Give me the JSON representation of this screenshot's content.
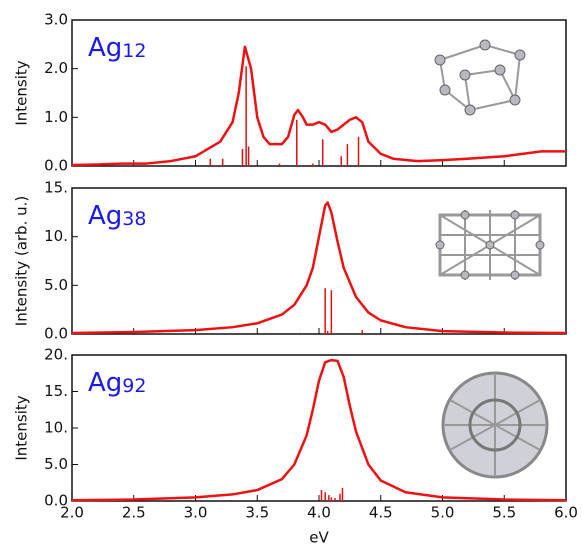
{
  "chart_data": [
    {
      "type": "line",
      "annotation": {
        "text": "Ag",
        "subscript": "12"
      },
      "ylabel": "Intensity",
      "xlim": [
        2.0,
        6.0
      ],
      "xticks": [
        2.0,
        2.5,
        3.0,
        3.5,
        4.0,
        4.5,
        5.0,
        5.5,
        6.0
      ],
      "ylim": [
        0,
        3.0
      ],
      "yticks": [
        {
          "value": 0,
          "label": "0.0"
        },
        {
          "value": 1,
          "label": "1.0"
        },
        {
          "value": 2,
          "label": "2.0"
        },
        {
          "value": 3,
          "label": "3.0"
        }
      ],
      "x": [
        2.0,
        2.2,
        2.4,
        2.6,
        2.8,
        2.9,
        3.0,
        3.1,
        3.2,
        3.3,
        3.35,
        3.4,
        3.45,
        3.5,
        3.55,
        3.6,
        3.7,
        3.75,
        3.8,
        3.83,
        3.87,
        3.9,
        3.95,
        4.0,
        4.05,
        4.1,
        4.15,
        4.2,
        4.25,
        4.3,
        4.35,
        4.4,
        4.5,
        4.6,
        4.8,
        5.0,
        5.2,
        5.5,
        5.8,
        6.0
      ],
      "values": [
        0.02,
        0.03,
        0.05,
        0.05,
        0.1,
        0.15,
        0.2,
        0.35,
        0.5,
        0.9,
        1.5,
        2.45,
        2.0,
        1.0,
        0.6,
        0.45,
        0.45,
        0.6,
        1.05,
        1.15,
        1.0,
        0.85,
        0.85,
        0.9,
        0.85,
        0.7,
        0.75,
        0.85,
        0.95,
        1.0,
        0.9,
        0.5,
        0.25,
        0.15,
        0.1,
        0.12,
        0.15,
        0.2,
        0.3,
        0.3
      ],
      "color": "#ee1111",
      "sticks": {
        "x": [
          3.12,
          3.22,
          3.38,
          3.41,
          3.43,
          3.68,
          3.82,
          3.95,
          4.03,
          4.18,
          4.23,
          4.32
        ],
        "values": [
          0.15,
          0.15,
          0.35,
          2.05,
          0.4,
          0.05,
          0.95,
          0.05,
          0.55,
          0.2,
          0.45,
          0.6
        ],
        "color": "#dd1111"
      }
    },
    {
      "type": "line",
      "annotation": {
        "text": "Ag",
        "subscript": "38"
      },
      "ylabel": "Intensity (arb. u.)",
      "xlim": [
        2.0,
        6.0
      ],
      "xticks": [
        2.0,
        2.5,
        3.0,
        3.5,
        4.0,
        4.5,
        5.0,
        5.5,
        6.0
      ],
      "ylim": [
        0,
        15
      ],
      "yticks": [
        {
          "value": 0,
          "label": "0.0"
        },
        {
          "value": 5,
          "label": "5.0"
        },
        {
          "value": 10,
          "label": "10."
        },
        {
          "value": 15,
          "label": "15."
        }
      ],
      "x": [
        2.0,
        2.5,
        3.0,
        3.3,
        3.5,
        3.7,
        3.8,
        3.9,
        3.95,
        4.0,
        4.05,
        4.07,
        4.1,
        4.15,
        4.2,
        4.3,
        4.4,
        4.5,
        4.7,
        5.0,
        5.5,
        6.0
      ],
      "values": [
        0.1,
        0.2,
        0.4,
        0.7,
        1.1,
        2.0,
        3.0,
        5.0,
        6.8,
        10.0,
        13.2,
        13.5,
        12.5,
        9.5,
        6.8,
        3.8,
        2.2,
        1.4,
        0.7,
        0.3,
        0.15,
        0.1
      ],
      "color": "#ee1111",
      "sticks": {
        "x": [
          3.85,
          4.05,
          4.07,
          4.1,
          4.35
        ],
        "values": [
          0.1,
          4.7,
          0.3,
          4.5,
          0.4
        ],
        "color": "#dd1111"
      }
    },
    {
      "type": "line",
      "annotation": {
        "text": "Ag",
        "subscript": "92"
      },
      "ylabel": "Intensity",
      "xlabel": "eV",
      "xlim": [
        2.0,
        6.0
      ],
      "xticks": [
        {
          "value": 2,
          "label": "2.0"
        },
        2.5,
        {
          "value": 3,
          "label": "3.0"
        },
        3.5,
        {
          "value": 4,
          "label": "4.0"
        },
        4.5,
        {
          "value": 5,
          "label": "5.0"
        },
        5.5,
        {
          "value": 6,
          "label": "6.0"
        }
      ],
      "ylim": [
        0,
        20
      ],
      "yticks": [
        {
          "value": 0,
          "label": "0.0"
        },
        {
          "value": 5,
          "label": "5.0"
        },
        {
          "value": 10,
          "label": "10."
        },
        {
          "value": 15,
          "label": "15."
        },
        {
          "value": 20,
          "label": "20."
        }
      ],
      "x": [
        2.0,
        2.5,
        3.0,
        3.3,
        3.5,
        3.7,
        3.8,
        3.9,
        3.95,
        4.0,
        4.05,
        4.1,
        4.15,
        4.2,
        4.25,
        4.3,
        4.4,
        4.5,
        4.7,
        5.0,
        5.5,
        6.0
      ],
      "values": [
        0.1,
        0.2,
        0.5,
        0.9,
        1.5,
        3.0,
        5.0,
        9.0,
        12.5,
        16.5,
        19.0,
        19.3,
        19.2,
        17.0,
        13.0,
        9.5,
        5.0,
        2.8,
        1.2,
        0.5,
        0.2,
        0.1
      ],
      "color": "#ee1111",
      "sticks": {
        "x": [
          4.02,
          4.05,
          4.08,
          4.1,
          4.13,
          4.17,
          4.19
        ],
        "values": [
          1.5,
          1.2,
          0.8,
          0.5,
          0.4,
          1.0,
          1.8
        ],
        "color": "#dd1111"
      }
    }
  ]
}
